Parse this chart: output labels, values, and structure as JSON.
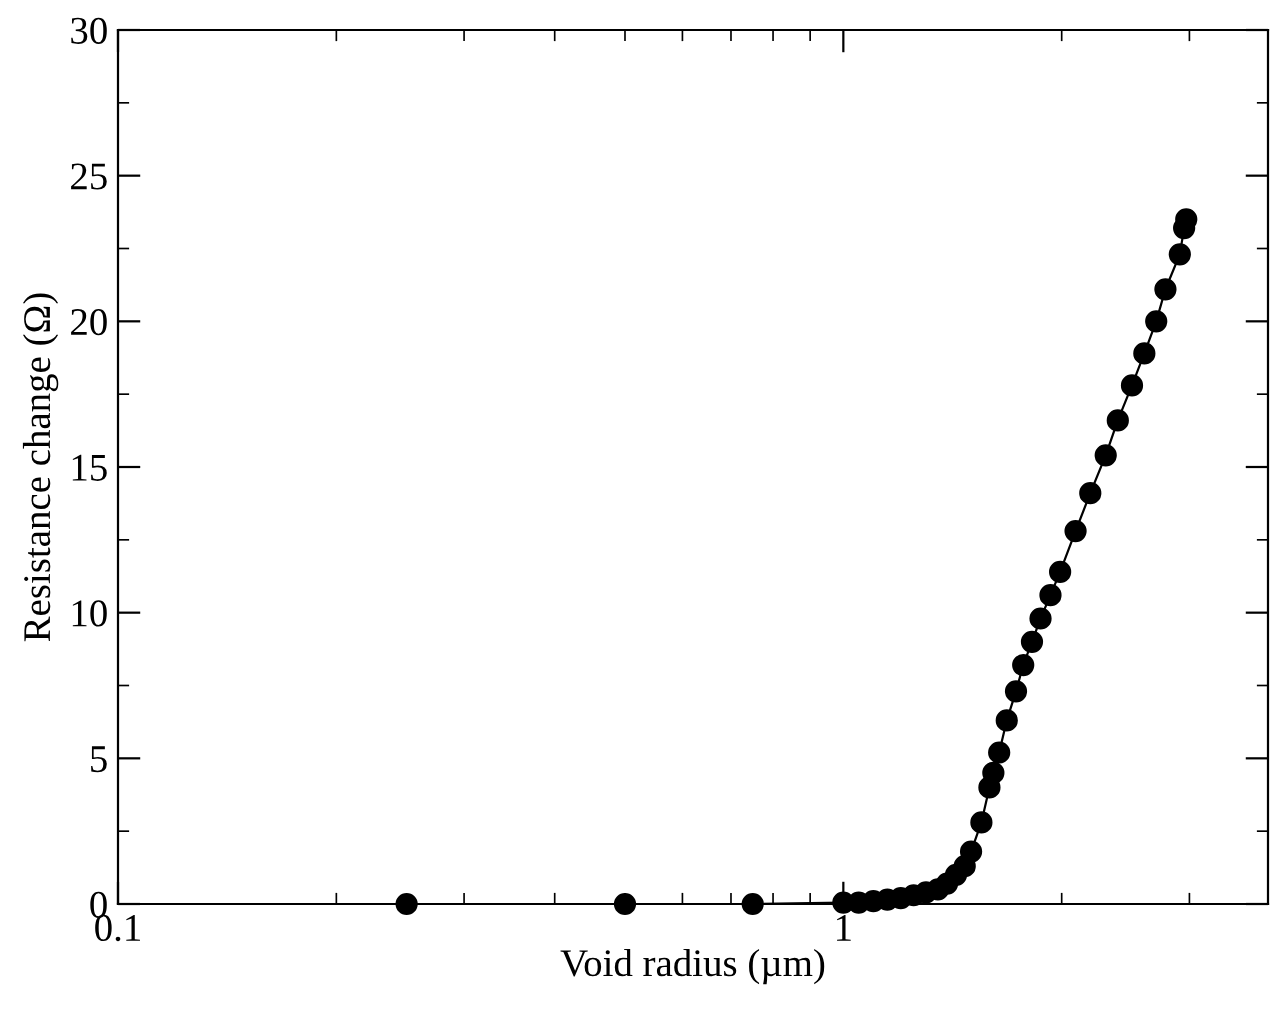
{
  "chart_data": {
    "type": "line",
    "xlabel": "Void radius (µm)",
    "ylabel": "Resistance change (Ω)",
    "log": "x",
    "xlim": [
      0.1,
      3.85
    ],
    "xticks": [
      0.1,
      1
    ],
    "ylim": [
      0,
      30
    ],
    "yticks": [
      0,
      5,
      10,
      15,
      20,
      25,
      30
    ],
    "marker": "circle",
    "line_style": "solid",
    "grid": false,
    "series": [
      {
        "color": "#000000",
        "x": [
          0.25,
          0.5,
          0.75,
          1.0,
          1.05,
          1.1,
          1.15,
          1.2,
          1.25,
          1.3,
          1.35,
          1.39,
          1.43,
          1.47,
          1.5,
          1.55,
          1.59,
          1.61,
          1.64,
          1.68,
          1.73,
          1.77,
          1.82,
          1.87,
          1.93,
          1.99,
          2.09,
          2.19,
          2.3,
          2.39,
          2.5,
          2.6,
          2.7,
          2.78,
          2.91,
          2.95,
          2.97
        ],
        "values": [
          0,
          0,
          0,
          0.05,
          0.05,
          0.1,
          0.15,
          0.2,
          0.3,
          0.4,
          0.5,
          0.7,
          1.0,
          1.3,
          1.8,
          2.8,
          4.0,
          4.5,
          5.2,
          6.3,
          7.3,
          8.2,
          9.0,
          9.8,
          10.6,
          11.4,
          12.8,
          14.1,
          15.4,
          16.6,
          17.8,
          18.9,
          20.0,
          21.1,
          22.3,
          23.2,
          23.5
        ]
      }
    ]
  }
}
